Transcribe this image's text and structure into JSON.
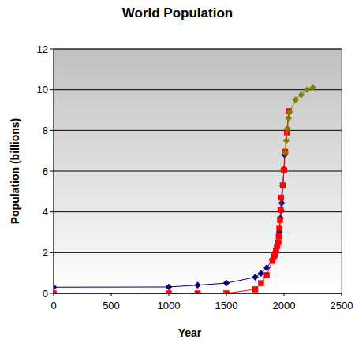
{
  "chart_data": {
    "type": "line",
    "title": "World Population",
    "x_label": "Year",
    "y_label": "Population (billions)",
    "xlim": [
      0,
      2500
    ],
    "xticks": [
      0,
      500,
      1000,
      1500,
      2000,
      2500
    ],
    "ylim": [
      0,
      12
    ],
    "yticks": [
      0,
      2,
      4,
      6,
      8,
      10,
      12
    ],
    "grid": true,
    "series": [
      {
        "color": "#000080",
        "marker": "diamond",
        "line_style": "solid",
        "x": [
          0,
          1000,
          1250,
          1500,
          1750,
          1800,
          1850,
          1900,
          1910,
          1920,
          1930,
          1940,
          1950,
          1960,
          1970,
          1975,
          1980,
          1990,
          2000,
          2005
        ],
        "values": [
          0.3,
          0.31,
          0.4,
          0.5,
          0.79,
          0.98,
          1.26,
          1.65,
          1.75,
          1.86,
          2.07,
          2.3,
          2.52,
          3.02,
          3.7,
          4.07,
          4.43,
          5.3,
          6.1,
          6.8
        ]
      },
      {
        "color": "#ff0000",
        "marker": "square",
        "line_style": "solid",
        "x": [
          0,
          1000,
          1250,
          1500,
          1750,
          1800,
          1850,
          1900,
          1910,
          1920,
          1930,
          1940,
          1950,
          1955,
          1960,
          1965,
          1970,
          1975,
          1990,
          2000,
          2010,
          2025,
          2040
        ],
        "values": [
          0,
          0,
          0,
          0,
          0.2,
          0.5,
          0.9,
          1.6,
          1.8,
          1.9,
          2.1,
          2.3,
          2.5,
          2.8,
          3.2,
          3.6,
          4.1,
          4.7,
          5.3,
          6.05,
          6.95,
          7.9,
          8.95
        ]
      },
      {
        "color": "#808000",
        "marker": "diamond",
        "line_style": "solid",
        "x": [
          2010,
          2020,
          2030,
          2040,
          2050,
          2100,
          2150,
          2200,
          2250
        ],
        "values": [
          6.9,
          7.5,
          8.1,
          8.6,
          8.9,
          9.5,
          9.75,
          10.0,
          10.1
        ]
      }
    ]
  }
}
